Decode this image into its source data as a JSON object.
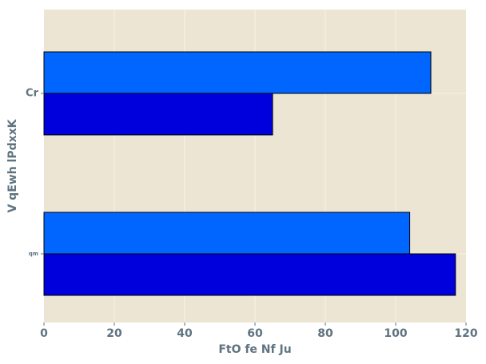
{
  "chart_data": {
    "type": "bar",
    "orientation": "horizontal",
    "title": "",
    "xlabel": "FtO fe Nf Ju",
    "ylabel": "V qEwh  lPdxxK",
    "categories": [
      "qm",
      "Cr"
    ],
    "xlim": [
      0,
      120
    ],
    "x_ticks": [
      "0",
      "20",
      "40",
      "60",
      "80",
      "100",
      "120"
    ],
    "grid": true,
    "legend": "none",
    "series": [
      {
        "color": "#0000dd",
        "values": [
          117,
          65
        ]
      },
      {
        "color": "#0066ff",
        "values": [
          104,
          110
        ]
      }
    ],
    "background": "#ece5d4",
    "grid_color": "#f7f3e9",
    "text_color": "#5f7380"
  }
}
